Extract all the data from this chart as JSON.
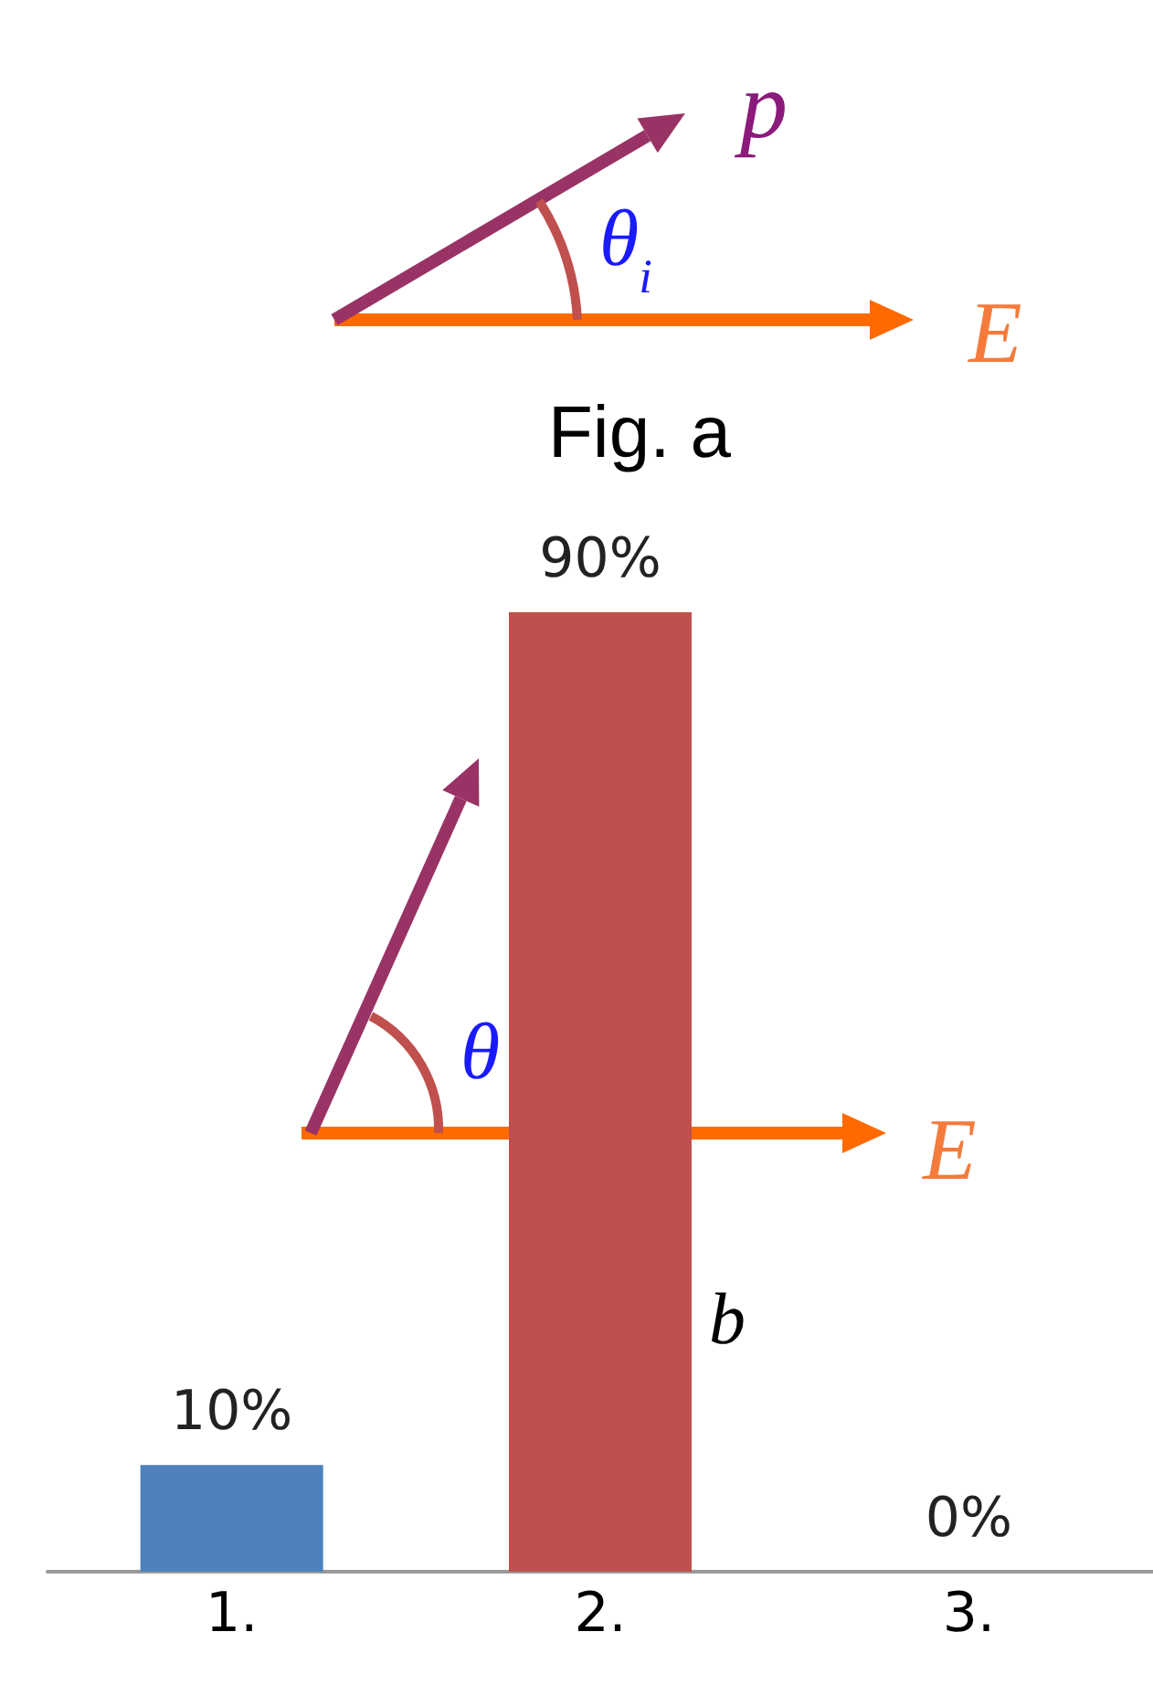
{
  "chart_data": {
    "type": "bar",
    "categories": [
      "1.",
      "2.",
      "3."
    ],
    "values": [
      10,
      90,
      0
    ],
    "colors": [
      "#4f81bd",
      "#c0504d",
      "#9bbb59"
    ],
    "value_labels": [
      "10%",
      "90%",
      "0%"
    ],
    "annotations": [
      "p",
      "E",
      "θ$_{i}$",
      "Fig. a",
      "θ",
      "E",
      "b"
    ]
  }
}
